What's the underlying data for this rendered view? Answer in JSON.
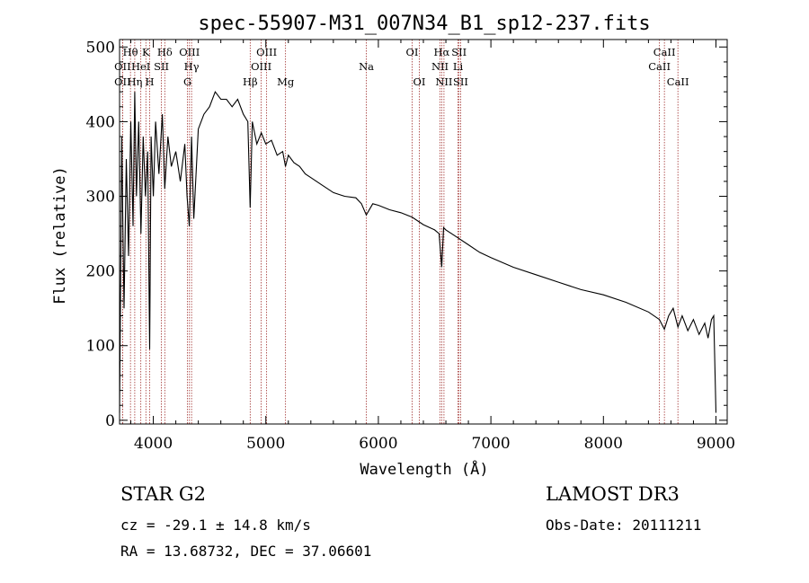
{
  "chart_data": {
    "type": "line",
    "title": "spec-55907-M31_007N34_B1_sp12-237.fits",
    "xlabel": "Wavelength (Å)",
    "ylabel": "Flux (relative)",
    "xlim": [
      3700,
      9100
    ],
    "ylim": [
      -5,
      510
    ],
    "x_ticks": [
      4000,
      5000,
      6000,
      7000,
      8000,
      9000
    ],
    "x_tick_labels": [
      "4000",
      "5000",
      "6000",
      "7000",
      "8000",
      "9000"
    ],
    "y_ticks": [
      0,
      100,
      200,
      300,
      400,
      500
    ],
    "y_tick_labels": [
      "0",
      "100",
      "200",
      "300",
      "400",
      "500"
    ],
    "series": [
      {
        "name": "spectrum",
        "x": [
          3700,
          3720,
          3730,
          3740,
          3760,
          3780,
          3800,
          3820,
          3835,
          3850,
          3870,
          3890,
          3910,
          3930,
          3950,
          3968,
          3980,
          4000,
          4020,
          4050,
          4080,
          4102,
          4130,
          4160,
          4200,
          4240,
          4280,
          4300,
          4320,
          4340,
          4360,
          4400,
          4450,
          4500,
          4550,
          4600,
          4650,
          4700,
          4750,
          4800,
          4840,
          4861,
          4880,
          4920,
          4960,
          5000,
          5050,
          5100,
          5150,
          5175,
          5200,
          5250,
          5300,
          5350,
          5400,
          5500,
          5600,
          5700,
          5800,
          5850,
          5893,
          5950,
          6000,
          6100,
          6200,
          6300,
          6400,
          6500,
          6540,
          6563,
          6580,
          6600,
          6700,
          6800,
          6900,
          7000,
          7200,
          7400,
          7600,
          7800,
          8000,
          8200,
          8400,
          8498,
          8542,
          8580,
          8620,
          8662,
          8700,
          8750,
          8800,
          8850,
          8900,
          8930,
          8960,
          8980,
          9000
        ],
        "y": [
          10,
          380,
          250,
          150,
          350,
          220,
          400,
          260,
          440,
          300,
          400,
          250,
          380,
          300,
          360,
          95,
          380,
          300,
          400,
          330,
          410,
          310,
          380,
          340,
          360,
          320,
          370,
          300,
          260,
          380,
          270,
          390,
          410,
          420,
          440,
          430,
          430,
          420,
          430,
          410,
          400,
          285,
          400,
          370,
          385,
          370,
          375,
          355,
          360,
          340,
          355,
          345,
          340,
          330,
          325,
          315,
          305,
          300,
          298,
          290,
          275,
          290,
          288,
          282,
          278,
          272,
          262,
          255,
          250,
          205,
          258,
          255,
          245,
          235,
          225,
          218,
          205,
          195,
          185,
          175,
          168,
          158,
          145,
          135,
          122,
          140,
          150,
          125,
          140,
          120,
          135,
          115,
          130,
          110,
          135,
          140,
          10
        ]
      }
    ],
    "line_markers": [
      {
        "label": "OII",
        "x": 3727,
        "row": 2
      },
      {
        "label": "OII",
        "x": 3727,
        "row": 3
      },
      {
        "label": "Hθ",
        "x": 3797,
        "row": 1
      },
      {
        "label": "Hη",
        "x": 3835,
        "row": 3
      },
      {
        "label": "HeI",
        "x": 3889,
        "row": 2
      },
      {
        "label": "K",
        "x": 3934,
        "row": 1
      },
      {
        "label": "H",
        "x": 3968,
        "row": 3
      },
      {
        "label": "SII",
        "x": 4072,
        "row": 2
      },
      {
        "label": "Hδ",
        "x": 4102,
        "row": 1
      },
      {
        "label": "OIII",
        "x": 4321,
        "row": 1
      },
      {
        "label": "Hγ",
        "x": 4340,
        "row": 2
      },
      {
        "label": "G",
        "x": 4304,
        "row": 3
      },
      {
        "label": "Hβ",
        "x": 4861,
        "row": 3
      },
      {
        "label": "OIII",
        "x": 4959,
        "row": 2
      },
      {
        "label": "OIII",
        "x": 5007,
        "row": 1
      },
      {
        "label": "Mg",
        "x": 5175,
        "row": 3
      },
      {
        "label": "Na",
        "x": 5893,
        "row": 2
      },
      {
        "label": "OI",
        "x": 6300,
        "row": 1
      },
      {
        "label": "OI",
        "x": 6364,
        "row": 3
      },
      {
        "label": "Hα",
        "x": 6563,
        "row": 1
      },
      {
        "label": "NII",
        "x": 6548,
        "row": 2
      },
      {
        "label": "NII",
        "x": 6583,
        "row": 3
      },
      {
        "label": "Li",
        "x": 6708,
        "row": 2
      },
      {
        "label": "SII",
        "x": 6717,
        "row": 1
      },
      {
        "label": "SII",
        "x": 6731,
        "row": 3
      },
      {
        "label": "CaII",
        "x": 8498,
        "row": 2
      },
      {
        "label": "CaII",
        "x": 8542,
        "row": 1
      },
      {
        "label": "CaII",
        "x": 8662,
        "row": 3
      }
    ]
  },
  "info": {
    "class_line": "STAR    G2",
    "survey": "LAMOST DR3",
    "redshift": "cz = -29.1 ± 14.8 km/s",
    "obs_date": "Obs-Date: 20111211",
    "coords": "RA =  13.68732, DEC =  37.06601"
  },
  "colors": {
    "marker_line": "#a0302e",
    "spectrum": "#000000",
    "axes": "#000000"
  }
}
